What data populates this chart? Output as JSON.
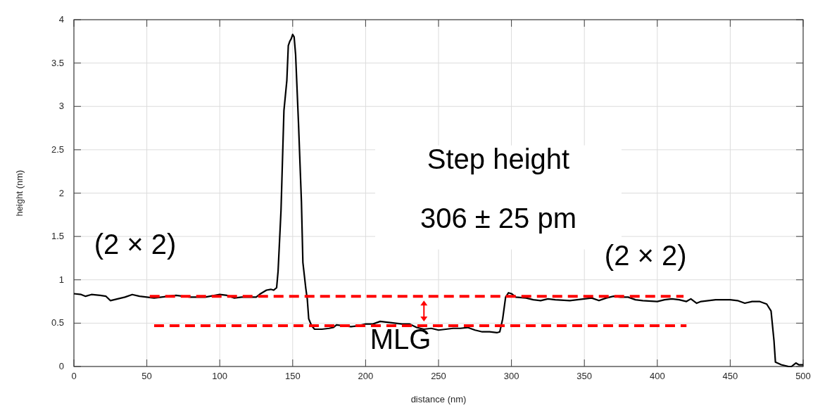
{
  "chart_data": {
    "type": "line",
    "xlabel": "distance (nm)",
    "ylabel": "height (nm)",
    "xlim": [
      0,
      500
    ],
    "ylim": [
      0,
      4
    ],
    "xticks": [
      0,
      50,
      100,
      150,
      200,
      250,
      300,
      350,
      400,
      450,
      500
    ],
    "yticks": [
      0,
      0.5,
      1,
      1.5,
      2,
      2.5,
      3,
      3.5,
      4
    ],
    "grid": true,
    "series": [
      {
        "color": "#000000",
        "x": [
          0,
          5,
          8,
          12,
          18,
          22,
          25,
          30,
          35,
          40,
          45,
          50,
          55,
          60,
          70,
          80,
          90,
          100,
          105,
          110,
          115,
          120,
          125,
          128,
          132,
          135,
          137,
          139,
          140,
          142,
          144,
          146,
          147,
          148,
          149,
          150,
          151,
          152,
          154,
          156,
          157,
          159,
          160,
          161,
          163,
          165,
          170,
          175,
          178,
          180,
          185,
          190,
          195,
          200,
          205,
          210,
          215,
          220,
          225,
          230,
          235,
          240,
          245,
          250,
          255,
          260,
          265,
          270,
          275,
          280,
          285,
          290,
          292,
          294,
          296,
          298,
          300,
          303,
          310,
          315,
          320,
          325,
          330,
          340,
          350,
          355,
          360,
          365,
          370,
          375,
          380,
          385,
          390,
          400,
          405,
          410,
          415,
          420,
          423,
          427,
          430,
          440,
          450,
          455,
          460,
          465,
          470,
          475,
          478,
          480,
          481,
          485,
          490,
          492,
          495,
          497,
          500
        ],
        "values": [
          0.84,
          0.83,
          0.81,
          0.83,
          0.82,
          0.81,
          0.76,
          0.78,
          0.8,
          0.83,
          0.81,
          0.8,
          0.79,
          0.8,
          0.82,
          0.8,
          0.8,
          0.83,
          0.82,
          0.79,
          0.8,
          0.8,
          0.8,
          0.84,
          0.88,
          0.89,
          0.88,
          0.91,
          1.1,
          1.8,
          2.95,
          3.3,
          3.7,
          3.75,
          3.78,
          3.83,
          3.8,
          3.6,
          2.8,
          1.9,
          1.2,
          0.9,
          0.78,
          0.55,
          0.47,
          0.43,
          0.43,
          0.44,
          0.45,
          0.48,
          0.47,
          0.46,
          0.47,
          0.49,
          0.49,
          0.52,
          0.51,
          0.5,
          0.49,
          0.49,
          0.45,
          0.43,
          0.44,
          0.42,
          0.43,
          0.44,
          0.44,
          0.45,
          0.42,
          0.4,
          0.4,
          0.39,
          0.4,
          0.55,
          0.8,
          0.85,
          0.84,
          0.8,
          0.79,
          0.77,
          0.76,
          0.78,
          0.77,
          0.76,
          0.78,
          0.79,
          0.76,
          0.79,
          0.81,
          0.8,
          0.8,
          0.77,
          0.76,
          0.75,
          0.77,
          0.78,
          0.77,
          0.75,
          0.78,
          0.73,
          0.75,
          0.77,
          0.77,
          0.76,
          0.73,
          0.75,
          0.75,
          0.72,
          0.64,
          0.3,
          0.05,
          0.02,
          0.0,
          0.0,
          0.04,
          0.02,
          0.02
        ]
      },
      {
        "color": "#ff0000",
        "line_style": "dashed",
        "x": [
          52,
          418
        ],
        "values": [
          0.81,
          0.81
        ]
      },
      {
        "color": "#ff0000",
        "line_style": "dashed",
        "x": [
          55,
          420
        ],
        "values": [
          0.47,
          0.47
        ]
      }
    ],
    "annotations": [
      "(2 × 2)",
      "(2 × 2)",
      "MLG",
      "Step height",
      "306 ± 25 pm"
    ]
  }
}
